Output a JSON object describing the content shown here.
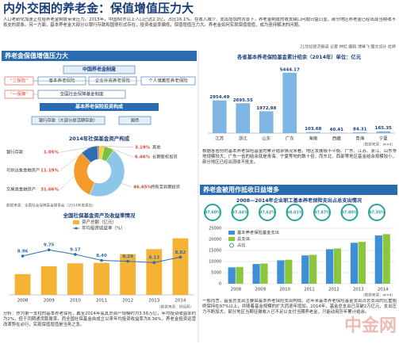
{
  "header": {
    "title": "内外交困的养老金：保值增值压力大",
    "intro": "人口老龄化加速正在给养老金制度带来压力。2015年，中国60岁以上人口已达2.2亿，占比16.1%。在收入减少、支出增加的背景下，养老金制度的收支缺口问题日益凸显，部分地区养老金已经出现当期收不抵支的现象。另一方面，基本养老金大部分以银行存款和国债形式存在，投资收益率偏低，保值增值压力大。养老金如何实现保值增值，成为亟待解决的问题。",
    "byline": "21世纪经济报道 记者 林虹 编辑 谭琳飞 图文设计 杜婷"
  },
  "left": {
    "heading": "养老金保值增值压力大",
    "system": {
      "title": "中国养老金制度",
      "group1": "“三保险”",
      "items1": [
        "基本养老保险",
        "企业补充养老保险",
        "个人储蓄性养老保险"
      ],
      "group2": "“一保障”",
      "item2": "全国社会保障基金制度",
      "invest_title": "基本养老保险投资构成",
      "invest": [
        "银行存款（大部分是活期存款）",
        "国债"
      ]
    },
    "pie": {
      "type": "pie",
      "title": "2014年社保基金资产构成",
      "categories": [
        "其他",
        "长期股权投资",
        "持有至到期投资",
        "交易类金融资产",
        "可供出售金融资产",
        "银行存款"
      ],
      "values": [
        3.19,
        6.46,
        46.45,
        31.66,
        11.19,
        1.05
      ],
      "value_labels": [
        "3.19%",
        "6.46%",
        "46.45%",
        "31.66%",
        "11.19%",
        "1.05%"
      ],
      "colors": [
        "#f2d23a",
        "#7cc242",
        "#8ec6ea",
        "#f39a2b",
        "#2f6db5",
        "#d9452f"
      ],
      "source": "数据来源：全国社会保障基金理事会（2014年度报告）"
    },
    "bars": {
      "type": "bar-line",
      "title": "全国社保基金资产及收益率情况",
      "categories": [
        "2008",
        "2009",
        "2010",
        "2011",
        "2012",
        "2013",
        "2014"
      ],
      "series": [
        {
          "name": "资产总额（亿元）",
          "color": "#f5b335",
          "values": [
            5624,
            7766,
            8567,
            8688,
            11060,
            12416,
            15356
          ]
        },
        {
          "name": "年均投资收益率（%）",
          "color": "#2a6fb5",
          "axis": "y2",
          "values": [
            8.96,
            9.75,
            9.17,
            8.4,
            8.29,
            8.13,
            8.82
          ],
          "value_labels": [
            "8.96",
            "9.75",
            "9.17",
            "8.40",
            "8.29",
            "8.13",
            "8.82"
          ]
        }
      ],
      "ylim": [
        0,
        17000
      ],
      "y2lim": [
        4,
        12
      ],
      "source": "（数据来源：财经网）"
    },
    "analysis": "分析：作为第一支柱的基本养老保险，截至2014年底其总资产规模约为3.56万亿，年均投资收益率约为2%，低于同期通货膨胀率。而全国社保基金自成立以来年均投资收益率为8.36%，养老金投资运营改革势在必行，实现保值增值是当务之急。"
  },
  "right": {
    "provinces": {
      "type": "bar",
      "title": "各省基本养老保险基金累计结余（2014年）单位：亿元",
      "categories": [
        "江苏",
        "浙江",
        "山东",
        "广东",
        "海南",
        "西藏",
        "青海",
        "宁夏"
      ],
      "values": [
        2954.49,
        2695.55,
        1972.98,
        5444.17,
        103.68,
        40.41,
        84.31,
        165.35
      ],
      "color": "#7fb6e3",
      "ylim": [
        0,
        6000
      ],
      "source": "（数据来源：wind）"
    },
    "text1": "根据各省份的基本养老保险基金的累计结余情况来看，地区发展极不平衡。广东、江苏、浙江、山东等地规模较大，广东一省的结余就是青海、宁夏等地的数十倍，而东北、西部等地区基金结余规模较小，部分地区已经出现收不抵支。",
    "heading": "养老金被用作抵收日益增多",
    "spending": {
      "type": "bar",
      "title": "2008—2014年企业职工基本养老保险支出占总支出情况",
      "categories": [
        "2008",
        "2009",
        "2010",
        "2011",
        "2012",
        "2013",
        "2014"
      ],
      "series": [
        {
          "name": "基本养老保险基金支出",
          "color": "#3f8fd6",
          "values": [
            7390,
            8894,
            10555,
            12765,
            15562,
            18470,
            21755
          ]
        },
        {
          "name": "总支出",
          "color": "#8cc63f",
          "values": [
            7572,
            9128,
            10812,
            13024,
            15900,
            18885,
            22346
          ]
        }
      ],
      "share": {
        "name": "占比",
        "color": "#2aa39a",
        "values": [
          97.6,
          97.44,
          97.62,
          98.01,
          97.87,
          97.8,
          97.35
        ],
        "value_labels": [
          "97.60%",
          "97.44%",
          "97.62%",
          "98.01%",
          "97.87%",
          "97.80%",
          "97.35%"
        ]
      },
      "ylim": [
        0,
        25000
      ],
      "yticks": [
        0,
        5000,
        10000,
        15000,
        20000,
        25000
      ],
      "grid": true,
      "source": "（数据来源：wind）"
    },
    "text2": "一般而言，基金总支出主要由基本养老保险支出构成。近年来基本养老保险基金支出占总支出的比重始终保持在97%以上，并随着基金规模的扩大而逐年增加。2014年，基金总支出已突破2万亿元，支出压力不断加大，部分地区当期征缴收入已不足以支付当期养老金，只能动用历年累计结余。"
  },
  "watermark": "中金网"
}
